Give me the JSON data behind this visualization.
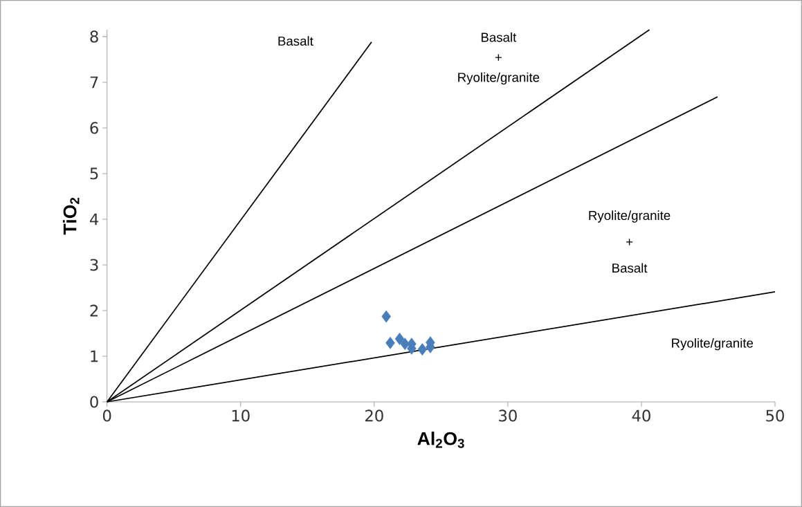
{
  "chart_data": {
    "type": "scatter",
    "xlabel": "**Al$_{2}$O$_{3}$**",
    "ylabel": "**TiO$_{2}$**",
    "xlim": [
      0,
      50
    ],
    "ylim": [
      0,
      8.15
    ],
    "xticks": [
      0,
      10,
      20,
      30,
      40,
      50
    ],
    "yticks": [
      0,
      1,
      2,
      3,
      4,
      5,
      6,
      7,
      8
    ],
    "series": [
      {
        "color": "#4a7ebb",
        "marker": "diamond",
        "x": [
          20.9,
          21.2,
          21.9,
          22.3,
          22.8,
          22.8,
          23.6,
          24.2,
          24.2
        ],
        "values": [
          1.87,
          1.29,
          1.38,
          1.27,
          1.27,
          1.17,
          1.15,
          1.3,
          1.2
        ]
      },
      {
        "type": "line",
        "color": "#000000",
        "marker": "none",
        "line_style": "solid",
        "x": [
          0,
          19.8
        ],
        "values": [
          0,
          7.88
        ]
      },
      {
        "type": "line",
        "color": "#000000",
        "marker": "none",
        "line_style": "solid",
        "x": [
          0,
          40.6
        ],
        "values": [
          0,
          8.15
        ]
      },
      {
        "type": "line",
        "color": "#000000",
        "marker": "none",
        "line_style": "solid",
        "x": [
          0,
          45.7
        ],
        "values": [
          0,
          6.68
        ]
      },
      {
        "type": "line",
        "color": "#000000",
        "marker": "none",
        "line_style": "solid",
        "x": [
          0,
          50
        ],
        "values": [
          0,
          2.41
        ]
      }
    ],
    "annotations": [
      "Basalt",
      "Basalt",
      "+",
      "Ryolite/granite",
      "Ryolite/granite",
      "+",
      "Basalt",
      "Ryolite/granite"
    ]
  }
}
